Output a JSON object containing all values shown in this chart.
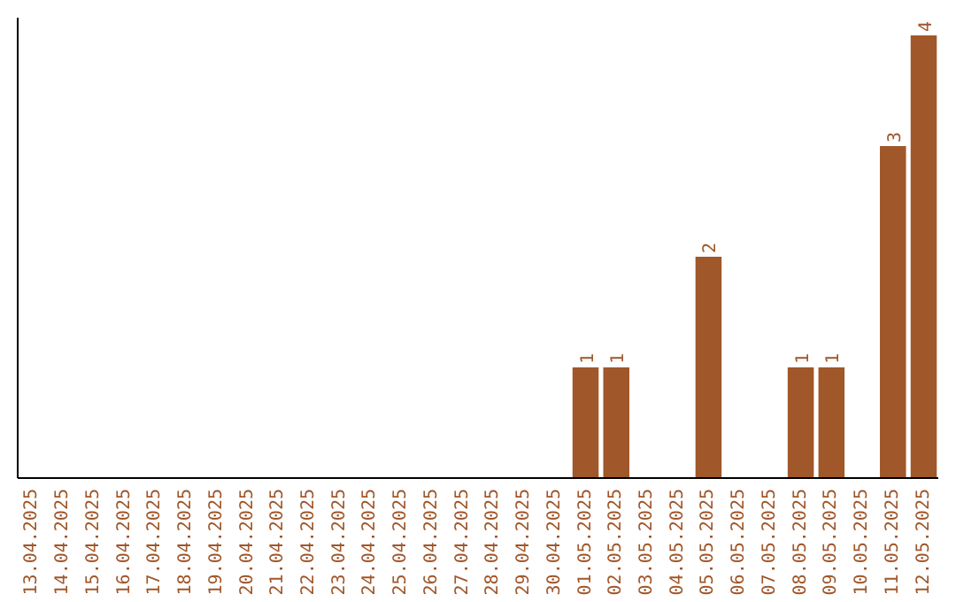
{
  "chart_data": {
    "type": "bar",
    "categories": [
      "13.04.2025",
      "14.04.2025",
      "15.04.2025",
      "16.04.2025",
      "17.04.2025",
      "18.04.2025",
      "19.04.2025",
      "20.04.2025",
      "21.04.2025",
      "22.04.2025",
      "23.04.2025",
      "24.04.2025",
      "25.04.2025",
      "26.04.2025",
      "27.04.2025",
      "28.04.2025",
      "29.04.2025",
      "30.04.2025",
      "01.05.2025",
      "02.05.2025",
      "03.05.2025",
      "04.05.2025",
      "05.05.2025",
      "06.05.2025",
      "07.05.2025",
      "08.05.2025",
      "09.05.2025",
      "10.05.2025",
      "11.05.2025",
      "12.05.2025"
    ],
    "values": [
      null,
      null,
      null,
      null,
      null,
      null,
      null,
      null,
      null,
      null,
      null,
      null,
      null,
      null,
      null,
      null,
      null,
      null,
      1,
      1,
      null,
      null,
      2,
      null,
      null,
      1,
      1,
      null,
      3,
      4
    ],
    "data_labels": true,
    "color": "#a0572a",
    "tick_labels": "x"
  }
}
